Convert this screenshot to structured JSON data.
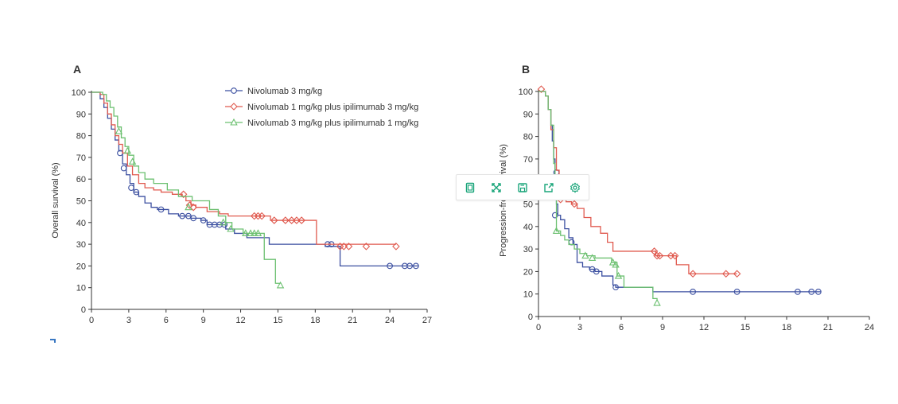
{
  "toolbar": {
    "icons": [
      "copy-icon",
      "expand-icon",
      "save-icon",
      "share-icon",
      "settings-icon"
    ],
    "accent": "#1aa57a"
  },
  "colors": {
    "nivo3": "#3b4fa0",
    "nivo1_ipi3": "#e05a4f",
    "nivo3_ipi1": "#6cc070",
    "axis": "#333333"
  },
  "chart_data": [
    {
      "type": "line",
      "panel": "A",
      "title": "",
      "xlabel": "",
      "ylabel": "Overall survival (%)",
      "xlim": [
        0,
        27
      ],
      "ylim": [
        0,
        100
      ],
      "xticks": [
        0,
        3,
        6,
        9,
        12,
        15,
        18,
        21,
        24,
        27
      ],
      "yticks": [
        0,
        10,
        20,
        30,
        40,
        50,
        60,
        70,
        80,
        90,
        100
      ],
      "legend_position": "top-right",
      "series": [
        {
          "name": "Nivolumab 3 mg/kg",
          "color_key": "nivo3",
          "marker": "circle",
          "steps": [
            [
              0,
              100
            ],
            [
              0.5,
              100
            ],
            [
              0.7,
              97
            ],
            [
              1.0,
              93
            ],
            [
              1.3,
              88
            ],
            [
              1.6,
              83
            ],
            [
              1.9,
              78
            ],
            [
              2.2,
              73
            ],
            [
              2.5,
              67
            ],
            [
              2.8,
              62
            ],
            [
              3.1,
              58
            ],
            [
              3.4,
              54
            ],
            [
              3.8,
              52
            ],
            [
              4.3,
              49
            ],
            [
              4.8,
              47
            ],
            [
              5.3,
              46
            ],
            [
              6.2,
              44
            ],
            [
              7.0,
              43
            ],
            [
              8.0,
              42
            ],
            [
              8.8,
              41
            ],
            [
              9.3,
              39
            ],
            [
              10.8,
              37
            ],
            [
              11.5,
              35
            ],
            [
              12.5,
              33
            ],
            [
              14.3,
              30
            ],
            [
              18.2,
              30
            ],
            [
              18.8,
              29
            ],
            [
              20.0,
              20
            ],
            [
              26.3,
              20
            ]
          ],
          "censor": [
            [
              2.3,
              72
            ],
            [
              2.6,
              65
            ],
            [
              3.2,
              56
            ],
            [
              3.6,
              54
            ],
            [
              5.6,
              46
            ],
            [
              7.3,
              43
            ],
            [
              7.8,
              43
            ],
            [
              8.2,
              42
            ],
            [
              9.0,
              41
            ],
            [
              9.5,
              39
            ],
            [
              9.9,
              39
            ],
            [
              10.3,
              39
            ],
            [
              10.7,
              39
            ],
            [
              19.0,
              30
            ],
            [
              19.3,
              30
            ],
            [
              24.0,
              20
            ],
            [
              25.2,
              20
            ],
            [
              25.6,
              20
            ],
            [
              26.1,
              20
            ]
          ]
        },
        {
          "name": "Nivolumab 1 mg/kg plus ipilimumab 3 mg/kg",
          "color_key": "nivo1_ipi3",
          "marker": "diamond",
          "steps": [
            [
              0,
              100
            ],
            [
              0.7,
              99
            ],
            [
              1.0,
              95
            ],
            [
              1.3,
              90
            ],
            [
              1.6,
              85
            ],
            [
              1.9,
              80
            ],
            [
              2.2,
              76
            ],
            [
              2.5,
              72
            ],
            [
              2.9,
              66
            ],
            [
              3.3,
              62
            ],
            [
              3.8,
              58
            ],
            [
              4.3,
              56
            ],
            [
              5.0,
              55
            ],
            [
              5.6,
              54
            ],
            [
              6.5,
              53
            ],
            [
              7.3,
              52
            ],
            [
              7.6,
              50
            ],
            [
              8.0,
              48
            ],
            [
              8.4,
              47
            ],
            [
              9.3,
              45
            ],
            [
              10.3,
              44
            ],
            [
              11.0,
              43
            ],
            [
              14.4,
              41
            ],
            [
              17.8,
              41
            ],
            [
              18.1,
              30
            ],
            [
              24.5,
              30
            ]
          ],
          "censor": [
            [
              7.4,
              53
            ],
            [
              7.9,
              48
            ],
            [
              8.2,
              47
            ],
            [
              13.1,
              43
            ],
            [
              13.4,
              43
            ],
            [
              13.7,
              43
            ],
            [
              14.7,
              41
            ],
            [
              15.6,
              41
            ],
            [
              16.1,
              41
            ],
            [
              16.5,
              41
            ],
            [
              16.9,
              41
            ],
            [
              20.0,
              29
            ],
            [
              20.3,
              29
            ],
            [
              20.7,
              29
            ],
            [
              22.1,
              29
            ],
            [
              24.5,
              29
            ]
          ]
        },
        {
          "name": "Nivolumab 3 mg/kg plus ipilimumab 1 mg/kg",
          "color_key": "nivo3_ipi1",
          "marker": "triangle",
          "steps": [
            [
              0,
              100
            ],
            [
              0.9,
              99
            ],
            [
              1.2,
              96
            ],
            [
              1.5,
              93
            ],
            [
              1.8,
              89
            ],
            [
              2.1,
              84
            ],
            [
              2.4,
              79
            ],
            [
              2.7,
              75
            ],
            [
              3.0,
              71
            ],
            [
              3.4,
              66
            ],
            [
              3.8,
              63
            ],
            [
              4.3,
              60
            ],
            [
              5.0,
              58
            ],
            [
              6.1,
              55
            ],
            [
              7.0,
              52
            ],
            [
              8.1,
              50
            ],
            [
              9.5,
              46
            ],
            [
              10.2,
              43
            ],
            [
              10.8,
              40
            ],
            [
              11.3,
              37
            ],
            [
              12.2,
              35
            ],
            [
              13.5,
              35
            ],
            [
              13.9,
              23
            ],
            [
              14.6,
              23
            ],
            [
              14.8,
              12
            ],
            [
              15.2,
              12
            ]
          ],
          "censor": [
            [
              2.2,
              82
            ],
            [
              2.9,
              73
            ],
            [
              3.3,
              68
            ],
            [
              7.8,
              47
            ],
            [
              10.6,
              40
            ],
            [
              11.2,
              37
            ],
            [
              12.4,
              35
            ],
            [
              12.8,
              35
            ],
            [
              13.1,
              35
            ],
            [
              13.4,
              35
            ],
            [
              15.2,
              11
            ]
          ]
        }
      ]
    },
    {
      "type": "line",
      "panel": "B",
      "title": "",
      "xlabel": "",
      "ylabel": "Progression-free survival (%)",
      "xlim": [
        0,
        24
      ],
      "ylim": [
        0,
        100
      ],
      "xticks": [
        0,
        3,
        6,
        9,
        12,
        15,
        18,
        21,
        24
      ],
      "yticks": [
        0,
        10,
        20,
        30,
        40,
        50,
        60,
        70,
        80,
        90,
        100
      ],
      "series": [
        {
          "name": "Nivolumab 3 mg/kg",
          "color_key": "nivo3",
          "marker": "circle",
          "steps": [
            [
              0,
              100
            ],
            [
              0.3,
              100
            ],
            [
              0.5,
              98
            ],
            [
              0.7,
              92
            ],
            [
              0.9,
              85
            ],
            [
              1.0,
              78
            ],
            [
              1.1,
              70
            ],
            [
              1.2,
              60
            ],
            [
              1.3,
              50
            ],
            [
              1.4,
              45
            ],
            [
              1.6,
              43
            ],
            [
              1.9,
              39
            ],
            [
              2.2,
              35
            ],
            [
              2.5,
              32
            ],
            [
              2.8,
              24
            ],
            [
              3.2,
              22
            ],
            [
              3.7,
              21
            ],
            [
              4.1,
              20
            ],
            [
              4.6,
              18
            ],
            [
              5.4,
              14
            ],
            [
              5.6,
              13
            ],
            [
              8.3,
              11
            ],
            [
              20.5,
              11
            ]
          ],
          "censor": [
            [
              1.3,
              64
            ],
            [
              1.2,
              45
            ],
            [
              2.4,
              33
            ],
            [
              3.9,
              21
            ],
            [
              4.2,
              20
            ],
            [
              5.6,
              13
            ],
            [
              11.2,
              11
            ],
            [
              14.4,
              11
            ],
            [
              18.8,
              11
            ],
            [
              19.8,
              11
            ],
            [
              20.3,
              11
            ]
          ]
        },
        {
          "name": "Nivolumab 1 mg/kg plus ipilimumab 3 mg/kg",
          "color_key": "nivo1_ipi3",
          "marker": "diamond",
          "steps": [
            [
              0,
              100
            ],
            [
              0.3,
              100
            ],
            [
              0.5,
              98
            ],
            [
              0.7,
              92
            ],
            [
              0.9,
              83
            ],
            [
              1.1,
              75
            ],
            [
              1.3,
              65
            ],
            [
              1.5,
              52
            ],
            [
              2.0,
              51
            ],
            [
              2.4,
              50
            ],
            [
              2.8,
              48
            ],
            [
              3.3,
              44
            ],
            [
              3.8,
              40
            ],
            [
              4.5,
              37
            ],
            [
              5.0,
              33
            ],
            [
              5.4,
              29
            ],
            [
              7.5,
              29
            ],
            [
              8.5,
              27
            ],
            [
              10.0,
              23
            ],
            [
              10.9,
              19
            ],
            [
              14.4,
              19
            ]
          ],
          "censor": [
            [
              0.2,
              101
            ],
            [
              1.6,
              52
            ],
            [
              2.6,
              50
            ],
            [
              8.4,
              29
            ],
            [
              8.6,
              27
            ],
            [
              8.8,
              27
            ],
            [
              9.6,
              27
            ],
            [
              9.9,
              27
            ],
            [
              11.2,
              19
            ],
            [
              13.6,
              19
            ],
            [
              14.4,
              19
            ]
          ]
        },
        {
          "name": "Nivolumab 3 mg/kg plus ipilimumab 1 mg/kg",
          "color_key": "nivo3_ipi1",
          "marker": "triangle",
          "steps": [
            [
              0,
              100
            ],
            [
              0.3,
              100
            ],
            [
              0.5,
              98
            ],
            [
              0.7,
              92
            ],
            [
              0.9,
              85
            ],
            [
              1.1,
              68
            ],
            [
              1.2,
              52
            ],
            [
              1.3,
              38
            ],
            [
              1.6,
              36
            ],
            [
              1.9,
              34
            ],
            [
              2.2,
              32
            ],
            [
              2.6,
              30
            ],
            [
              3.0,
              28
            ],
            [
              3.5,
              27
            ],
            [
              4.1,
              26
            ],
            [
              5.3,
              24
            ],
            [
              5.7,
              18
            ],
            [
              6.2,
              13
            ],
            [
              8.3,
              8
            ],
            [
              8.6,
              7
            ]
          ],
          "censor": [
            [
              1.3,
              38
            ],
            [
              3.4,
              27
            ],
            [
              3.9,
              26
            ],
            [
              5.4,
              24
            ],
            [
              5.6,
              23
            ],
            [
              5.8,
              18
            ],
            [
              8.6,
              6
            ]
          ]
        }
      ]
    }
  ]
}
